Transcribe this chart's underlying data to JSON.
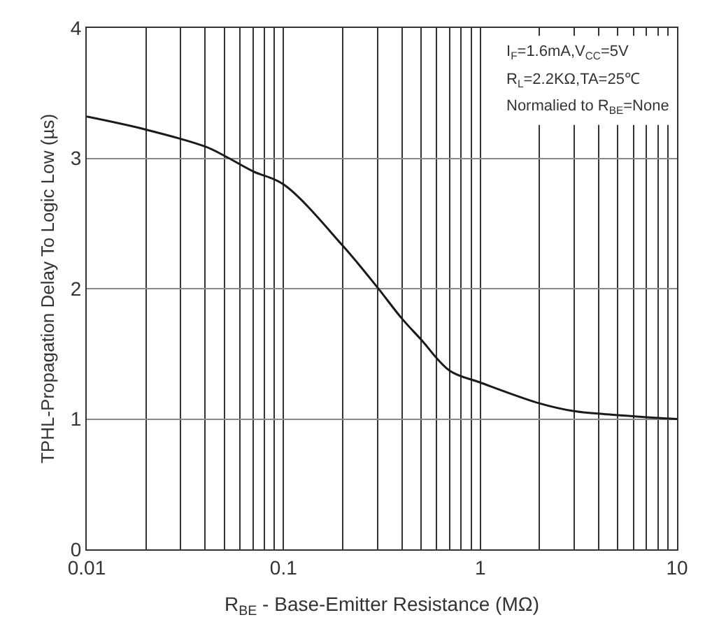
{
  "chart_data": {
    "type": "line",
    "xlabel": "R$_{BE}$ - Base-Emitter Resistance (MΩ)",
    "ylabel": "TPHL-Propagation Delay To Logic Low (µs)",
    "annotations": [
      "I$_{F}$=1.6mA,V$_{CC}$=5V",
      "R$_{L}$=2.2KΩ,TA=25℃",
      "Normalied to R$_{BE}$=None"
    ],
    "x": [
      0.01,
      0.02,
      0.04,
      0.05,
      0.07,
      0.1,
      0.2,
      0.3,
      0.4,
      0.5,
      0.7,
      1,
      2,
      3,
      5,
      10
    ],
    "series": [
      {
        "color": "#1a1a1a",
        "values": [
          3.32,
          3.22,
          3.09,
          3.02,
          2.9,
          2.8,
          2.33,
          2.01,
          1.77,
          1.61,
          1.37,
          1.28,
          1.12,
          1.06,
          1.03,
          1.0
        ]
      }
    ],
    "log": "x",
    "xlim": [
      0.01,
      10
    ],
    "xticks": [
      0.01,
      {
        "value": 0.02,
        "label": null
      },
      {
        "value": 0.03,
        "label": null
      },
      {
        "value": 0.04,
        "label": null
      },
      {
        "value": 0.05,
        "label": null
      },
      {
        "value": 0.06,
        "label": null
      },
      {
        "value": 0.07,
        "label": null
      },
      {
        "value": 0.08,
        "label": null
      },
      {
        "value": 0.09,
        "label": null
      },
      0.1,
      {
        "value": 0.2,
        "label": null
      },
      {
        "value": 0.3,
        "label": null
      },
      {
        "value": 0.4,
        "label": null
      },
      {
        "value": 0.5,
        "label": null
      },
      {
        "value": 0.6,
        "label": null
      },
      {
        "value": 0.7,
        "label": null
      },
      {
        "value": 0.8,
        "label": null
      },
      {
        "value": 0.9,
        "label": null
      },
      1,
      {
        "value": 2,
        "label": null
      },
      {
        "value": 3,
        "label": null
      },
      {
        "value": 4,
        "label": null
      },
      {
        "value": 5,
        "label": null
      },
      {
        "value": 6,
        "label": null
      },
      {
        "value": 7,
        "label": null
      },
      {
        "value": 8,
        "label": null
      },
      {
        "value": 9,
        "label": null
      },
      10
    ],
    "ylim": [
      0,
      4
    ],
    "yticks": [
      0,
      1,
      2,
      3,
      4
    ],
    "grid": true,
    "marker": "none",
    "line_style": "solid"
  }
}
